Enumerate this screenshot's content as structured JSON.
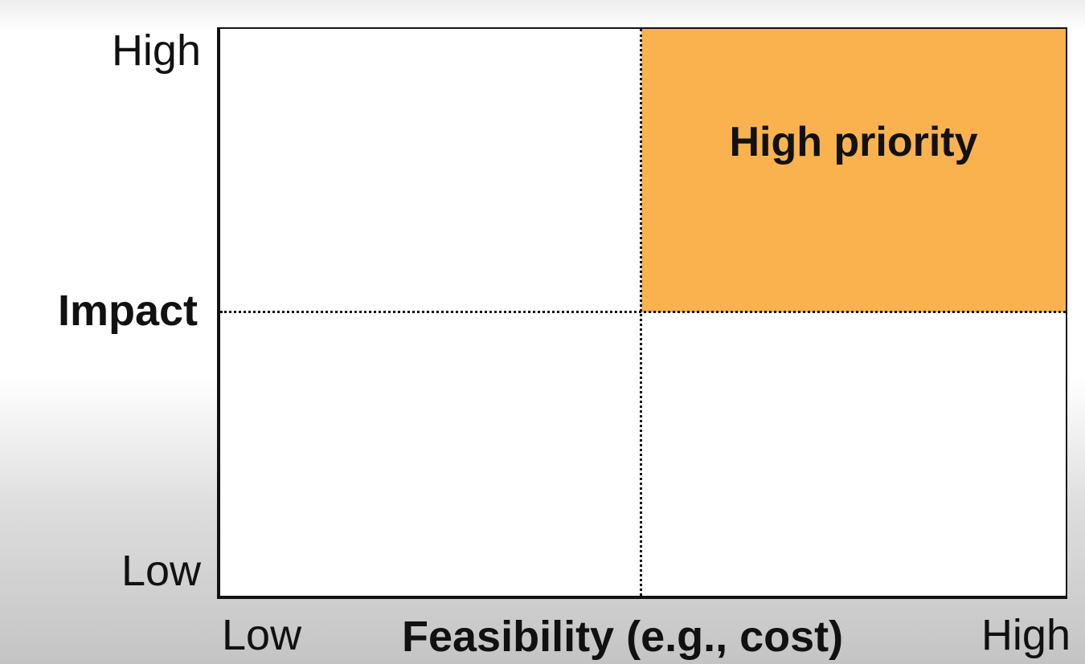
{
  "matrix": {
    "y_axis": {
      "title": "Impact",
      "high_label": "High",
      "low_label": "Low"
    },
    "x_axis": {
      "title": "Feasibility (e.g., cost)",
      "low_label": "Low",
      "high_label": "High"
    },
    "quadrants": {
      "top_right": {
        "label": "High priority",
        "color": "#f9b24e"
      }
    }
  }
}
